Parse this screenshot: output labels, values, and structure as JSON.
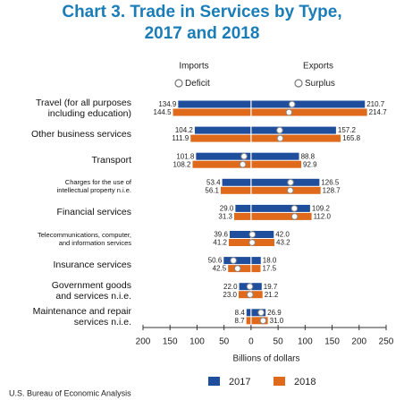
{
  "chart_data": {
    "type": "butterfly-bar",
    "title": "Chart 3. Trade in Services by Type,\n2017 and 2018",
    "column_labels": [
      "Imports",
      "Exports"
    ],
    "balance_legend": [
      "Deficit",
      "Surplus"
    ],
    "categories": [
      "Travel (for all purposes\nincluding education)",
      "Other business services",
      "Transport",
      "Charges for the use of\nintellectual property n.i.e.",
      "Financial services",
      "Telecommunications, computer,\nand information services",
      "Insurance services",
      "Government goods\nand services n.i.e.",
      "Maintenance and repair\nservices n.i.e."
    ],
    "series": [
      {
        "name": "2017",
        "color": "#1f4e9c",
        "imports": {
          "values": [
            -134.9,
            -104.2,
            -101.8,
            -53.4,
            -29.0,
            -39.6,
            -50.6,
            -22.0,
            -8.4
          ],
          "value_labels": [
            "134.9",
            "104.2",
            "101.8",
            "53.4",
            "29.0",
            "39.6",
            "50.6",
            "22.0",
            "8.4"
          ]
        },
        "exports": {
          "values": [
            210.7,
            157.2,
            88.8,
            126.5,
            109.2,
            42.0,
            18.0,
            19.7,
            26.9
          ],
          "value_labels": [
            "210.7",
            "157.2",
            "88.8",
            "126.5",
            "109.2",
            "42.0",
            "18.0",
            "19.7",
            "26.9"
          ]
        },
        "balance": [
          75.8,
          53.0,
          -13.0,
          73.1,
          80.2,
          2.4,
          -32.6,
          -2.3,
          18.5
        ]
      },
      {
        "name": "2018",
        "color": "#e06a1b",
        "imports": {
          "values": [
            -144.5,
            -111.9,
            -108.2,
            -56.1,
            -31.3,
            -41.2,
            -42.5,
            -23.0,
            -8.7
          ],
          "value_labels": [
            "144.5",
            "111.9",
            "108.2",
            "56.1",
            "31.3",
            "41.2",
            "42.5",
            "23.0",
            "8.7"
          ]
        },
        "exports": {
          "values": [
            214.7,
            165.8,
            92.9,
            128.7,
            112.0,
            43.2,
            17.5,
            21.2,
            31.0
          ],
          "value_labels": [
            "214.7",
            "165.8",
            "92.9",
            "128.7",
            "112.0",
            "43.2",
            "17.5",
            "21.2",
            "31.0"
          ]
        },
        "balance": [
          70.2,
          53.9,
          -15.3,
          72.6,
          80.7,
          2.0,
          -25.0,
          -1.8,
          22.3
        ]
      }
    ],
    "xlim": [
      -200,
      250
    ],
    "xticks": [
      {
        "value": -200,
        "label": "200"
      },
      {
        "value": -150,
        "label": "150"
      },
      {
        "value": -100,
        "label": "100"
      },
      {
        "value": -50,
        "label": "50"
      },
      0,
      50,
      100,
      150,
      200,
      250
    ],
    "xlabel": "Billions of dollars",
    "source": "U.S. Bureau of Economic Analysis"
  }
}
